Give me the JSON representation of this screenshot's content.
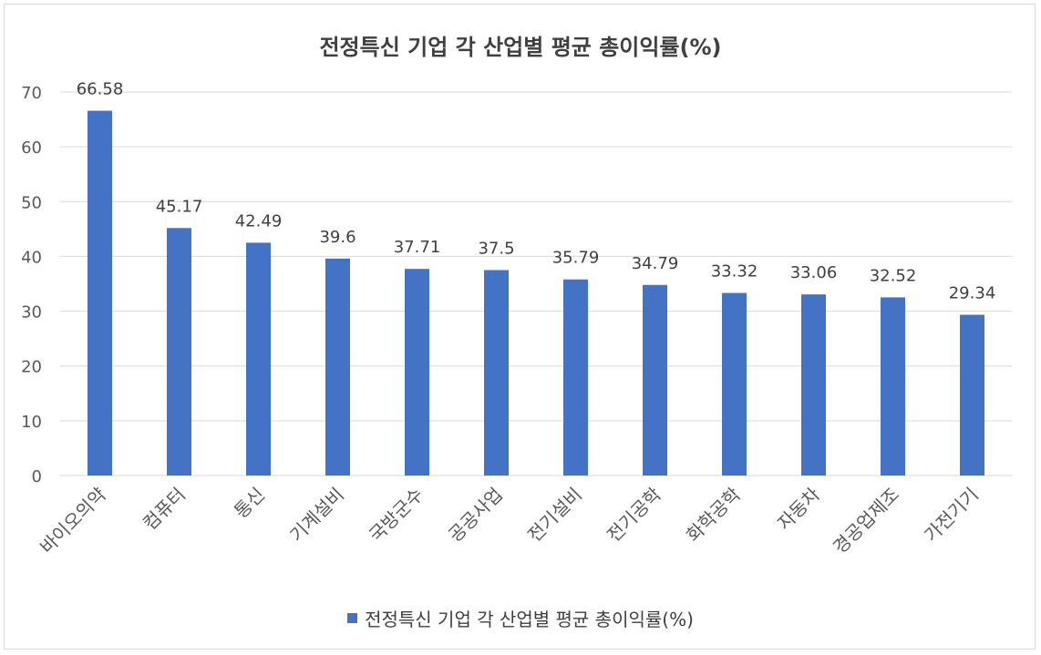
{
  "chart_data": {
    "type": "bar",
    "title": "전정특신 기업 각 산업별 평균 총이익률(%)",
    "categories": [
      "바이오의약",
      "컴퓨터",
      "통신",
      "기계설비",
      "국방군수",
      "공공사업",
      "전기설비",
      "전기공학",
      "화학공학",
      "자동차",
      "경공업제조",
      "가전기기"
    ],
    "series": [
      {
        "name": "전정특신 기업 각 산업별 평균 총이익률(%)",
        "values": [
          66.58,
          45.17,
          42.49,
          39.6,
          37.71,
          37.5,
          35.79,
          34.79,
          33.32,
          33.06,
          32.52,
          29.34
        ],
        "labels": [
          "66.58",
          "45.17",
          "42.49",
          "39.6",
          "37.71",
          "37.5",
          "35.79",
          "34.79",
          "33.32",
          "33.06",
          "32.52",
          "29.34"
        ],
        "color": "#4472c4"
      }
    ],
    "yticks": [
      0,
      10,
      20,
      30,
      40,
      50,
      60,
      70
    ],
    "ylim": [
      0,
      70
    ],
    "grid": true,
    "legend_position": "bottom",
    "xlabel": "",
    "ylabel": ""
  }
}
